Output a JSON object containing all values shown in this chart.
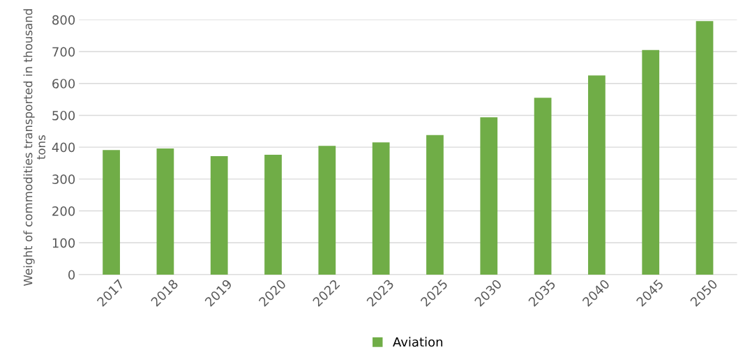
{
  "chart_data": {
    "type": "bar",
    "ylabel": "Weight of commodities transported in thousand tons",
    "categories": [
      "2017",
      "2018",
      "2019",
      "2020",
      "2022",
      "2023",
      "2025",
      "2030",
      "2035",
      "2040",
      "2045",
      "2050"
    ],
    "series": [
      {
        "name": "Aviation",
        "color": "#70ad47",
        "values": [
          391,
          396,
          372,
          376,
          404,
          415,
          438,
          494,
          555,
          625,
          705,
          796
        ]
      }
    ],
    "ylim": [
      0,
      800
    ],
    "yticks": [
      0,
      100,
      200,
      300,
      400,
      500,
      600,
      700,
      800
    ],
    "grid": "y",
    "legend": "bottom"
  }
}
